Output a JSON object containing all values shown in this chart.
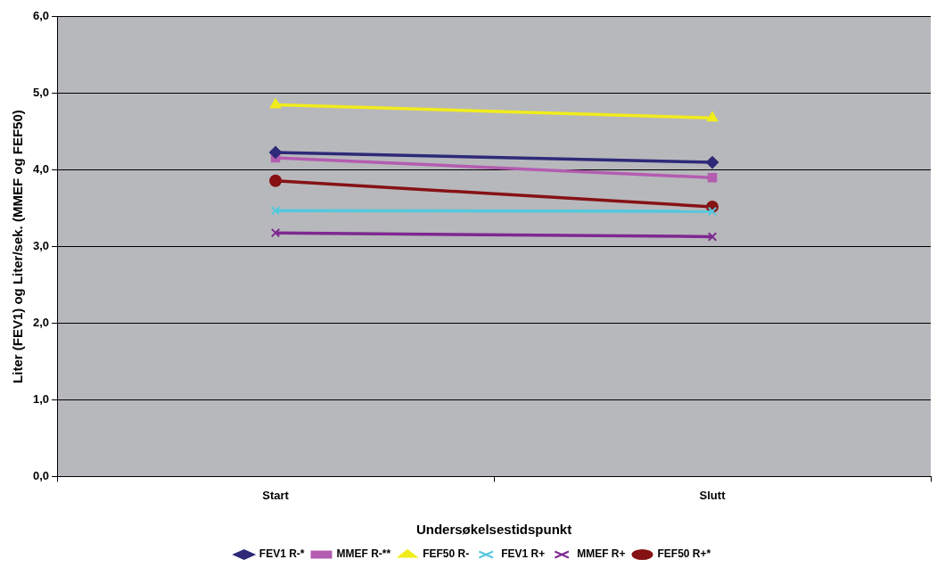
{
  "chart_data": {
    "type": "line",
    "xlabel": "Undersøkelsestidspunkt",
    "ylabel": "Liter (FEV1) og Liter/sek. (MMEF og FEF50)",
    "categories": [
      "Start",
      "Slutt"
    ],
    "ylim": [
      0,
      6
    ],
    "yticks": [
      {
        "value": 0,
        "label": "0,0"
      },
      {
        "value": 1,
        "label": "1,0"
      },
      {
        "value": 2,
        "label": "2,0"
      },
      {
        "value": 3,
        "label": "3,0"
      },
      {
        "value": 4,
        "label": "4,0"
      },
      {
        "value": 5,
        "label": "5,0"
      },
      {
        "value": 6,
        "label": "6,0"
      }
    ],
    "grid": "y",
    "legend": "bottom",
    "line_style": "solid",
    "series": [
      {
        "name": "FEV1 R-*",
        "color": "#2e2a78",
        "marker": "diamond",
        "values": [
          4.23,
          4.1
        ]
      },
      {
        "name": "MMEF R-**",
        "color": "#b45cb0",
        "marker": "square",
        "values": [
          4.16,
          3.9
        ]
      },
      {
        "name": "FEF50 R-",
        "color": "#f0ec1c",
        "marker": "triangle",
        "values": [
          4.85,
          4.68
        ]
      },
      {
        "name": "FEV1 R+",
        "color": "#54c8dc",
        "marker": "cross",
        "values": [
          3.47,
          3.46
        ]
      },
      {
        "name": "MMEF R+",
        "color": "#7e2890",
        "marker": "cross",
        "values": [
          3.18,
          3.13
        ]
      },
      {
        "name": "FEF50 R+*",
        "color": "#861214",
        "marker": "circle",
        "values": [
          3.86,
          3.52
        ]
      }
    ]
  }
}
